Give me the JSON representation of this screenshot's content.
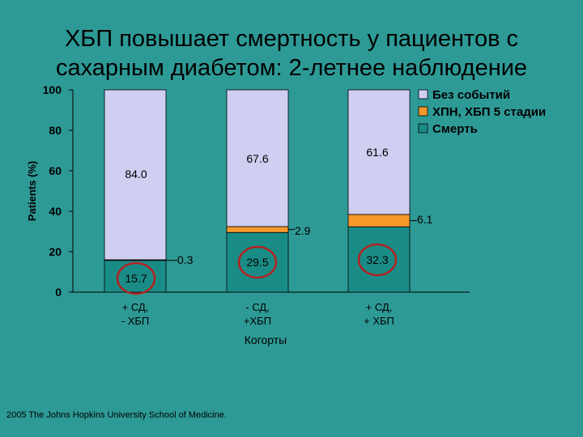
{
  "slide": {
    "title_line1": "ХБП повышает смертность у пациентов с",
    "title_line2": "сахарным диабетом: 2-летнее наблюдение",
    "footer": "2005 The Johns Hopkins University School of Medicine."
  },
  "chart_data": {
    "type": "bar",
    "stacked": true,
    "ylabel": "Patients (%)",
    "xlabel": "Когорты",
    "ylim": [
      0,
      100
    ],
    "yticks": [
      0,
      20,
      40,
      60,
      80,
      100
    ],
    "categories": [
      [
        "+ СД,",
        "- ХБП"
      ],
      [
        "- СД,",
        "+ХБП"
      ],
      [
        "+ СД,",
        "+ ХБП"
      ]
    ],
    "series": [
      {
        "name": "Смерть",
        "values": [
          15.7,
          29.5,
          32.3
        ],
        "labels": [
          "15.7",
          "29.5",
          "32.3"
        ],
        "color": "#1a8c86",
        "circled": true
      },
      {
        "name": "ХПН, ХБП 5 стадии",
        "values": [
          0.3,
          2.9,
          6.1
        ],
        "labels": [
          "0.3",
          "2.9",
          "6.1"
        ],
        "color": "#f7982b"
      },
      {
        "name": "Без событий",
        "values": [
          84.0,
          67.6,
          61.6
        ],
        "labels": [
          "84.0",
          "67.6",
          "61.6"
        ],
        "color": "#cfcff2"
      }
    ],
    "legend_order": [
      "Без событий",
      "ХПН, ХБП 5 стадии",
      "Смерть"
    ],
    "legend_position": "top-right",
    "colors": {
      "background": "#2e9a96",
      "circle": "#b22222"
    }
  }
}
